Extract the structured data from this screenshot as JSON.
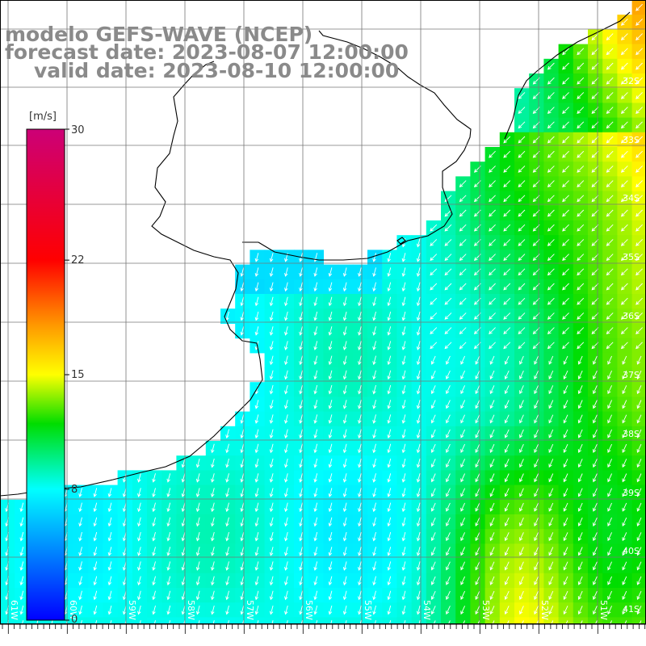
{
  "titles": {
    "line1": "modelo GEFS-WAVE (NCEP)",
    "line2": "forecast date: 2023-08-07 12:00:00",
    "line3": "valid date: 2023-08-10 12:00:00"
  },
  "colorbar": {
    "unit": "[m/s]",
    "tick_labels": [
      "30",
      "22",
      "15",
      "8",
      "0"
    ],
    "tick_values": [
      30,
      22,
      15,
      8,
      0
    ],
    "stops": [
      {
        "value": 0,
        "color": "#0000ff"
      },
      {
        "value": 8,
        "color": "#00ffff"
      },
      {
        "value": 12,
        "color": "#00dd00"
      },
      {
        "value": 15,
        "color": "#ffff00"
      },
      {
        "value": 18,
        "color": "#ff9900"
      },
      {
        "value": 22,
        "color": "#ff0000"
      },
      {
        "value": 30,
        "color": "#cc0077"
      }
    ]
  },
  "lat_labels": [
    "32S",
    "33S",
    "34S",
    "35S",
    "36S",
    "37S",
    "38S",
    "39S",
    "40S",
    "41S"
  ],
  "lon_labels": [
    "61W",
    "60W",
    "59W",
    "58W",
    "57W",
    "56W",
    "55W",
    "54W",
    "53W",
    "52W",
    "51W"
  ],
  "colors": {
    "land": "#ffffff",
    "coast": "#000000",
    "grid": "#777777",
    "arrow": "#ffffff",
    "title": "#8a8a8a"
  },
  "chart_data": {
    "type": "heatmap",
    "variable": "wind speed",
    "unit": "m/s",
    "value_range": [
      0,
      30
    ],
    "description_values": {
      "offshore_southwest": 9,
      "nearshore_uruguay": 7,
      "east_band": 12.5,
      "northeast_max": 15
    },
    "wind_direction": "from northeast (arrows pointing southwest)"
  }
}
